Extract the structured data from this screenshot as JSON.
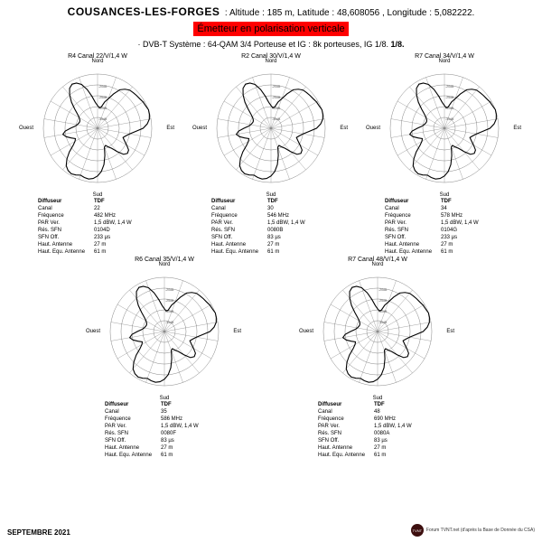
{
  "header": {
    "site": "COUSANCES-LES-FORGES",
    "alt_label": "Altitude :",
    "alt_value": "185 m,",
    "lat_label": "Latitude :",
    "lat_value": "48,608056 ,",
    "lon_label": "Longitude :",
    "lon_value": "5,082222.",
    "polarisation": "Émetteur en polarisation verticale",
    "system": "· DVB-T   Système : 64-QAM 3/4    Porteuse et IG : 8k porteuses, IG 1/8.",
    "ig_suffix": "1/8."
  },
  "cardinals": {
    "n": "Nord",
    "s": "Sud",
    "e": "Est",
    "w": "Ouest"
  },
  "spec_labels": {
    "diffuseur": "Diffuseur",
    "canal": "Canal",
    "freq": "Fréquence",
    "par": "PAR Ver.",
    "res_sfn": "Rés. SFN",
    "sfn_off": "SFN Off.",
    "h_ant": "Haut. Antenne",
    "h_equ": "Haut. Equ. Antenne"
  },
  "chart_style": {
    "ring_count": 5,
    "ring_color": "#666666",
    "spoke_color": "#666666",
    "pattern_stroke": "#000000",
    "pattern_fill": "none",
    "pattern_width": 1.1,
    "spoke_width": 0.3,
    "ring_width": 0.4,
    "spoke_count": 18,
    "tick_labels": [
      "-35dB",
      "-30dB",
      "-25dB",
      "-20dB"
    ]
  },
  "pattern_radii": [
    0.42,
    0.38,
    0.4,
    0.5,
    0.58,
    0.7,
    0.82,
    0.88,
    0.92,
    0.93,
    0.94,
    0.95,
    0.97,
    0.98,
    1.0,
    0.99,
    0.97,
    0.92,
    0.84,
    0.7,
    0.6,
    0.54,
    0.5,
    0.55,
    0.62,
    0.7,
    0.72,
    0.68,
    0.56,
    0.45,
    0.4,
    0.35,
    0.37,
    0.52,
    0.68,
    0.8,
    0.88,
    0.93,
    0.95,
    0.94,
    0.92,
    0.95,
    0.97,
    0.95,
    0.9,
    0.8,
    0.68,
    0.55,
    0.48,
    0.45,
    0.52,
    0.6,
    0.65,
    0.6,
    0.5,
    0.42,
    0.38,
    0.36,
    0.35,
    0.36,
    0.39,
    0.45,
    0.55,
    0.68,
    0.8,
    0.9,
    0.94,
    0.92,
    0.86,
    0.74,
    0.6,
    0.48
  ],
  "charts": [
    {
      "title": "R4  Canal 22/V/1,4 W",
      "spec": {
        "diffuseur": "TDF",
        "canal": "22",
        "freq": "482 MHz",
        "par": "1,5 dBW, 1,4 W",
        "res_sfn": "0104D",
        "sfn_off": "233 µs",
        "h_ant": "27 m",
        "h_equ": "61 m"
      }
    },
    {
      "title": "R2  Canal 30/V/1,4 W",
      "spec": {
        "diffuseur": "TDF",
        "canal": "30",
        "freq": "546 MHz",
        "par": "1,5 dBW, 1,4 W",
        "res_sfn": "0080B",
        "sfn_off": "83 µs",
        "h_ant": "27 m",
        "h_equ": "61 m"
      }
    },
    {
      "title": "R7  Canal 34/V/1,4 W",
      "spec": {
        "diffuseur": "TDF",
        "canal": "34",
        "freq": "578 MHz",
        "par": "1,5 dBW, 1,4 W",
        "res_sfn": "0104G",
        "sfn_off": "233 µs",
        "h_ant": "27 m",
        "h_equ": "61 m"
      }
    },
    {
      "title": "R6  Canal 35/V/1,4 W",
      "spec": {
        "diffuseur": "TDF",
        "canal": "35",
        "freq": "586 MHz",
        "par": "1,5 dBW, 1,4 W",
        "res_sfn": "0080F",
        "sfn_off": "83 µs",
        "h_ant": "27 m",
        "h_equ": "61 m"
      }
    },
    {
      "title": "R7  Canal 48/V/1,4 W",
      "spec": {
        "diffuseur": "TDF",
        "canal": "48",
        "freq": "690 MHz",
        "par": "1,5 dBW, 1,4 W",
        "res_sfn": "0080A",
        "sfn_off": "83 µs",
        "h_ant": "27 m",
        "h_equ": "61 m"
      }
    }
  ],
  "footer": {
    "date": "SEPTEMBRE  2021",
    "src_dot": "TVNT",
    "src_text": "Forum TVNT.net (d'après la Base de Donnée du CSA)"
  }
}
